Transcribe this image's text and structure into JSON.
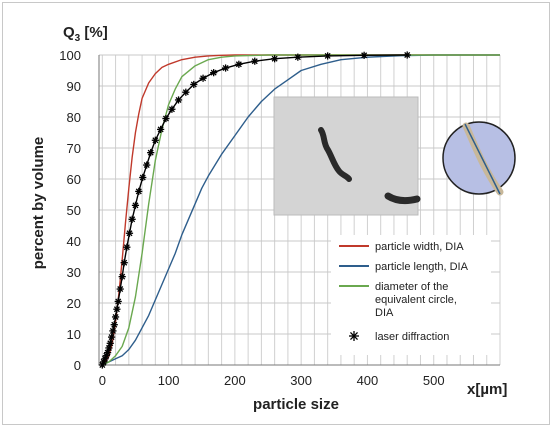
{
  "chart_data": {
    "type": "line",
    "xlabel": "particle size",
    "xunit": "x[µm]",
    "ylabel": "percent by volume",
    "yunit_top": "Q",
    "yunit_sub": "3",
    "yunit_rest": " [%]",
    "xlim": [
      -5,
      600
    ],
    "ylim": [
      0,
      100
    ],
    "xticks": [
      0,
      100,
      200,
      300,
      400,
      500
    ],
    "yticks": [
      0,
      10,
      20,
      30,
      40,
      50,
      60,
      70,
      80,
      90,
      100
    ],
    "grid": true,
    "legend_position": "bottom-right",
    "series": [
      {
        "name": "particle width, DIA",
        "color": "#c0392b",
        "x": [
          0,
          5,
          10,
          15,
          20,
          25,
          30,
          35,
          40,
          45,
          50,
          55,
          60,
          70,
          80,
          90,
          100,
          120,
          140,
          160,
          180,
          200,
          250,
          300,
          600
        ],
        "y": [
          0,
          1,
          3,
          7,
          14,
          23,
          34,
          46,
          57,
          67,
          75,
          81,
          86,
          91,
          94,
          96,
          97,
          98.5,
          99.3,
          99.7,
          99.9,
          100,
          100,
          100,
          100
        ]
      },
      {
        "name": "particle length, DIA",
        "color": "#2e5e8c",
        "x": [
          0,
          10,
          20,
          30,
          40,
          50,
          60,
          70,
          80,
          90,
          100,
          110,
          120,
          130,
          140,
          150,
          160,
          180,
          200,
          220,
          240,
          260,
          280,
          300,
          330,
          360,
          400,
          450,
          500,
          600
        ],
        "y": [
          0,
          1,
          2,
          3,
          5,
          8,
          12,
          16,
          21,
          26,
          31,
          36,
          42,
          47,
          52,
          57,
          61,
          68,
          74,
          80,
          85,
          89,
          92,
          95,
          97,
          98.5,
          99.3,
          99.8,
          100,
          100
        ]
      },
      {
        "name": "diameter of the equivalent circle, DIA",
        "color": "#6aa84f",
        "x": [
          0,
          10,
          20,
          30,
          40,
          50,
          60,
          70,
          80,
          90,
          100,
          110,
          120,
          140,
          160,
          180,
          200,
          250,
          300,
          600
        ],
        "y": [
          0,
          1,
          3,
          6,
          12,
          22,
          36,
          52,
          66,
          76,
          84,
          89,
          93,
          96.5,
          98.5,
          99.3,
          99.7,
          100,
          100,
          100
        ]
      },
      {
        "name": "laser diffraction",
        "color": "#000000",
        "marker": "asterisk",
        "x": [
          0,
          2,
          4,
          6,
          8,
          10,
          12,
          14,
          16,
          18,
          20,
          22,
          24,
          27,
          30,
          33,
          37,
          41,
          45,
          50,
          55,
          61,
          67,
          73,
          80,
          88,
          96,
          105,
          115,
          126,
          138,
          152,
          168,
          186,
          206,
          230,
          260,
          295,
          340,
          395,
          460
        ],
        "y": [
          0,
          1,
          2,
          3,
          4,
          5.5,
          7,
          9,
          11,
          13,
          15.5,
          18,
          20.5,
          24.5,
          28.5,
          33,
          38,
          42.5,
          47,
          51.5,
          56,
          60.5,
          64.5,
          68.5,
          72.5,
          76,
          79.5,
          82.5,
          85.5,
          88,
          90.5,
          92.5,
          94.3,
          95.8,
          97,
          98,
          98.8,
          99.3,
          99.7,
          99.9,
          100
        ]
      }
    ]
  },
  "legend": {
    "items": [
      {
        "lines": [
          "particle width, DIA"
        ],
        "color": "#c0392b",
        "kind": "line"
      },
      {
        "lines": [
          "particle length, DIA"
        ],
        "color": "#2e5e8c",
        "kind": "line"
      },
      {
        "lines": [
          "diameter of the",
          "equivalent circle,",
          "DIA"
        ],
        "color": "#6aa84f",
        "kind": "line"
      },
      {
        "lines": [
          "laser diffraction"
        ],
        "color": "#000000",
        "kind": "asterisk"
      }
    ]
  }
}
